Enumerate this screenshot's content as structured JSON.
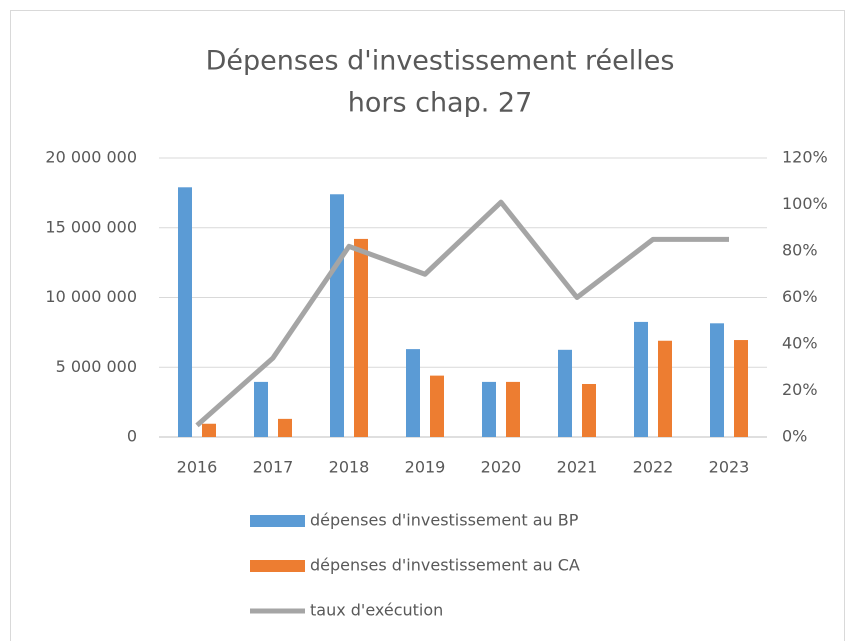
{
  "chart_data": {
    "type": "bar",
    "title": [
      "Dépenses d'investissement réelles",
      "hors chap. 27"
    ],
    "categories": [
      "2016",
      "2017",
      "2018",
      "2019",
      "2020",
      "2021",
      "2022",
      "2023"
    ],
    "series": [
      {
        "name": "dépenses d'investissement au BP",
        "color": "#5b9bd5",
        "type": "bar",
        "values": [
          17900000,
          3950000,
          17400000,
          6300000,
          3950000,
          6250000,
          8250000,
          8150000
        ]
      },
      {
        "name": "dépenses d'investissement au CA",
        "color": "#ed7d31",
        "type": "bar",
        "values": [
          950000,
          1300000,
          14200000,
          4400000,
          3950000,
          3800000,
          6900000,
          6950000
        ]
      },
      {
        "name": "taux d'exécution",
        "color": "#a5a5a5",
        "type": "line",
        "axis": "y2",
        "values": [
          5,
          34,
          82,
          70,
          101,
          60,
          85,
          85
        ]
      }
    ],
    "ylim": [
      0,
      20000000
    ],
    "yticks": [
      0,
      {
        "value": 5000000,
        "label": "5 000 000"
      },
      {
        "value": 10000000,
        "label": "10 000 000"
      },
      {
        "value": 15000000,
        "label": "15 000 000"
      },
      {
        "value": 20000000,
        "label": "20 000 000"
      }
    ],
    "y2lim": [
      0,
      120
    ],
    "y2ticks": [
      {
        "value": 0,
        "label": "0%"
      },
      {
        "value": 20,
        "label": "20%"
      },
      {
        "value": 40,
        "label": "40%"
      },
      {
        "value": 60,
        "label": "60%"
      },
      {
        "value": 80,
        "label": "80%"
      },
      {
        "value": 100,
        "label": "100%"
      },
      {
        "value": 120,
        "label": "120%"
      }
    ],
    "grid": true,
    "legend": "bottom"
  }
}
